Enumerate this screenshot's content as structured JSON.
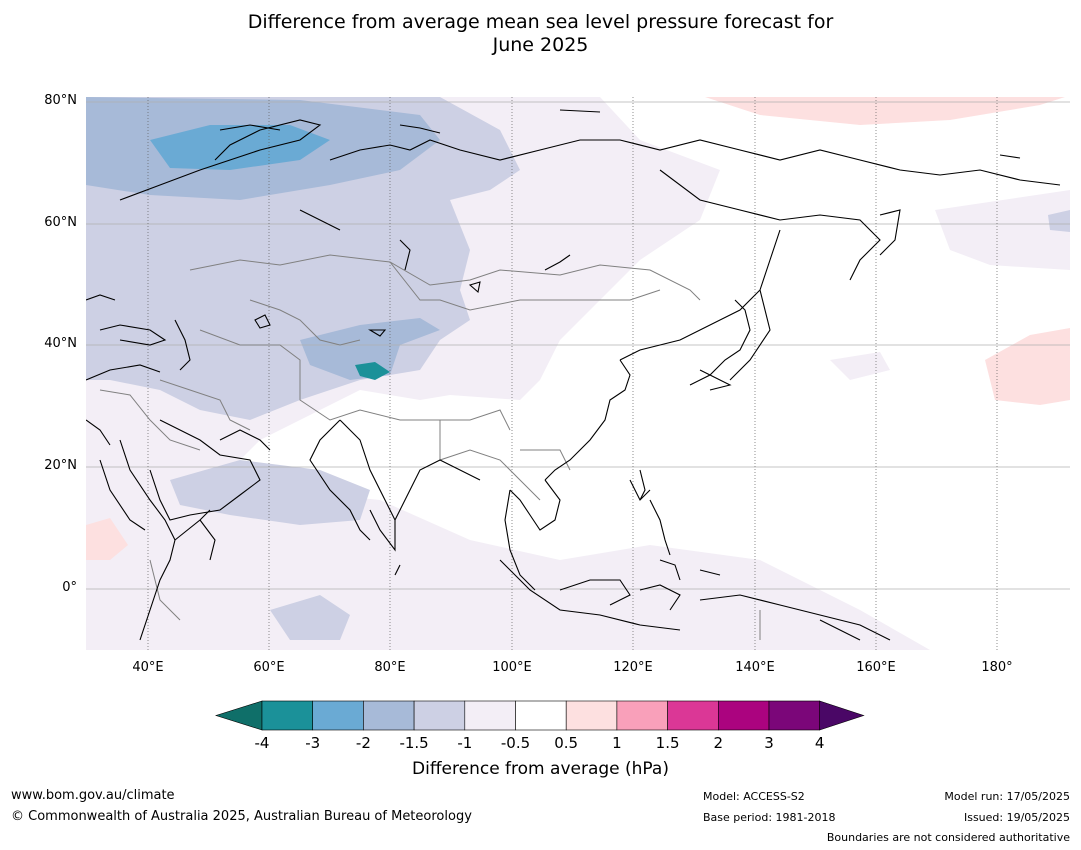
{
  "title_line1": "Difference from average mean sea level pressure forecast for",
  "title_line2": "June 2025",
  "lat_labels": [
    "80°N",
    "60°N",
    "40°N",
    "20°N",
    "0°"
  ],
  "lon_labels": [
    "40°E",
    "60°E",
    "80°E",
    "100°E",
    "120°E",
    "140°E",
    "160°E",
    "180°"
  ],
  "colorbar": {
    "title": "Difference from average (hPa)",
    "ticks": [
      "-4",
      "-3",
      "-2",
      "-1.5",
      "-1",
      "-0.5",
      "0.5",
      "1",
      "1.5",
      "2",
      "3",
      "4"
    ],
    "colors": [
      "#0f6f69",
      "#1b9199",
      "#6aaad4",
      "#a7bad8",
      "#cdd0e4",
      "#f3eef6",
      "#ffffff",
      "#fde0e0",
      "#f9a0ba",
      "#db3796",
      "#ab037f",
      "#7b0679",
      "#4a0766"
    ]
  },
  "legend_colors": {
    "coast": "#000000",
    "borders": "#808080",
    "grid": "#b0b0b0"
  },
  "footer": {
    "url": "www.bom.gov.au/climate",
    "copyright": "© Commonwealth of Australia 2025, Australian Bureau of Meteorology",
    "model": "Model: ACCESS-S2",
    "base_period": "Base period: 1981-2018",
    "model_run": "Model run: 17/05/2025",
    "issued": "Issued: 19/05/2025",
    "disclaimer": "Boundaries are not considered authoritative"
  }
}
